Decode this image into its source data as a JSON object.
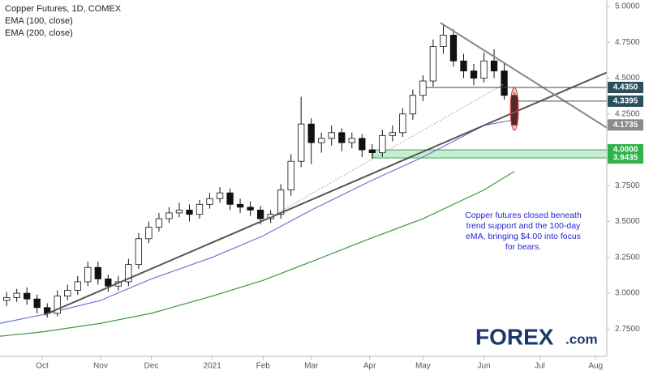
{
  "chart_data": {
    "type": "candlestick",
    "title": "Copper Futures, 1D, COMEX",
    "indicators": [
      "EMA (100, close)",
      "EMA (200, close)"
    ],
    "x": [
      -14,
      -10,
      -6,
      -2,
      2,
      6,
      10,
      14,
      18,
      22,
      26,
      30,
      34,
      38,
      42,
      46,
      50,
      54,
      58,
      62,
      66,
      70,
      74,
      78,
      82,
      86,
      90,
      94,
      98,
      102,
      106,
      110,
      114,
      118,
      122,
      126,
      130,
      134,
      138,
      142,
      146,
      150,
      154,
      158,
      162,
      166,
      170,
      174,
      178,
      182,
      186
    ],
    "open": [
      2.95,
      2.97,
      3.0,
      2.96,
      2.9,
      2.86,
      2.98,
      3.02,
      3.08,
      3.18,
      3.1,
      3.05,
      3.08,
      3.2,
      3.38,
      3.46,
      3.52,
      3.56,
      3.58,
      3.55,
      3.62,
      3.66,
      3.7,
      3.62,
      3.6,
      3.58,
      3.52,
      3.55,
      3.72,
      3.92,
      4.18,
      4.05,
      4.08,
      4.12,
      4.05,
      4.08,
      4.0,
      3.98,
      4.1,
      4.12,
      4.25,
      4.38,
      4.48,
      4.72,
      4.8,
      4.62,
      4.55,
      4.5,
      4.62,
      4.55,
      4.38
    ],
    "high": [
      3.01,
      3.03,
      3.04,
      2.99,
      2.93,
      3.02,
      3.06,
      3.12,
      3.22,
      3.22,
      3.13,
      3.12,
      3.24,
      3.42,
      3.5,
      3.56,
      3.6,
      3.63,
      3.62,
      3.65,
      3.7,
      3.74,
      3.73,
      3.66,
      3.64,
      3.61,
      3.58,
      3.76,
      3.97,
      4.37,
      4.22,
      4.12,
      4.17,
      4.15,
      4.12,
      4.11,
      4.04,
      4.14,
      4.17,
      4.29,
      4.42,
      4.52,
      4.77,
      4.88,
      4.84,
      4.67,
      4.6,
      4.68,
      4.7,
      4.6,
      4.4
    ],
    "low": [
      2.91,
      2.94,
      2.92,
      2.86,
      2.83,
      2.84,
      2.95,
      2.99,
      3.05,
      3.06,
      3.01,
      3.02,
      3.05,
      3.17,
      3.35,
      3.43,
      3.49,
      3.53,
      3.5,
      3.52,
      3.59,
      3.63,
      3.58,
      3.56,
      3.54,
      3.48,
      3.49,
      3.52,
      3.68,
      3.88,
      3.9,
      3.98,
      4.03,
      3.99,
      4.01,
      3.95,
      3.94,
      3.95,
      4.06,
      4.09,
      4.21,
      4.34,
      4.44,
      4.67,
      4.58,
      4.5,
      4.45,
      4.47,
      4.5,
      4.35,
      4.17
    ],
    "close": [
      2.97,
      3.0,
      2.96,
      2.9,
      2.86,
      2.98,
      3.02,
      3.08,
      3.18,
      3.1,
      3.05,
      3.08,
      3.2,
      3.38,
      3.46,
      3.52,
      3.56,
      3.58,
      3.55,
      3.62,
      3.66,
      3.7,
      3.62,
      3.6,
      3.58,
      3.52,
      3.55,
      3.72,
      3.92,
      4.18,
      4.05,
      4.08,
      4.12,
      4.05,
      4.08,
      4.0,
      3.98,
      4.1,
      4.12,
      4.25,
      4.38,
      4.48,
      4.72,
      4.8,
      4.62,
      4.55,
      4.5,
      4.62,
      4.55,
      4.38,
      4.1735
    ],
    "up_color": "#ffffff",
    "down_color": "#111111",
    "series": [
      {
        "name": "EMA (100, close)",
        "color": "#7b6fd0",
        "x": [
          -16.6,
          0,
          23,
          43,
          67,
          87,
          106,
          129,
          150,
          174,
          186
        ],
        "values": [
          2.79,
          2.85,
          2.95,
          3.1,
          3.25,
          3.4,
          3.58,
          3.78,
          3.95,
          4.17,
          4.21
        ]
      },
      {
        "name": "EMA (200, close)",
        "color": "#3f9a3f",
        "x": [
          -16.6,
          0,
          23,
          43,
          67,
          87,
          106,
          129,
          150,
          174,
          186
        ],
        "values": [
          2.7,
          2.73,
          2.79,
          2.86,
          2.98,
          3.09,
          3.22,
          3.38,
          3.52,
          3.72,
          3.85
        ]
      }
    ],
    "trendlines": [
      {
        "color": "#555555",
        "x": [
          1,
          222.4
        ],
        "y": [
          2.85,
          4.54
        ]
      },
      {
        "color": "#888888",
        "x": [
          156.8,
          222.4
        ],
        "y": [
          4.887,
          4.154
        ]
      }
    ],
    "dotted_line": {
      "color": "#aaaaaa",
      "x": [
        88.8,
        182
      ],
      "y": [
        3.52,
        4.46
      ]
    },
    "levels": [
      {
        "value": 4.435,
        "label": "4.4350",
        "color": "#2c4f5c",
        "start": 151
      },
      {
        "value": 4.3395,
        "label": "4.3395",
        "color": "#2c4f5c",
        "start": 186
      },
      {
        "value": 4.1735,
        "label": "4.1735",
        "color": "#8a8a8a"
      }
    ],
    "zone": {
      "low": {
        "value": 3.9435,
        "label": "3.9435"
      },
      "high": {
        "value": 4.0,
        "label": "4.0000"
      },
      "color": "#2db34a",
      "start": 130.3
    },
    "annotation": [
      "Copper futures closed beneath",
      "trend support and the 100-day",
      "eMA, bringing $4.00 into focus",
      "for bears."
    ],
    "logo": {
      "brand": "FOREX",
      "suffix": ".com"
    },
    "grid": false,
    "xlim": [
      -16.6,
      222.4
    ],
    "xticks": [
      {
        "value": 0,
        "label": "Oct"
      },
      {
        "value": 23,
        "label": "Nov"
      },
      {
        "value": 43,
        "label": "Dec"
      },
      {
        "value": 67,
        "label": "2021"
      },
      {
        "value": 87,
        "label": "Feb"
      },
      {
        "value": 106,
        "label": "Mar"
      },
      {
        "value": 129,
        "label": "Apr"
      },
      {
        "value": 150,
        "label": "May"
      },
      {
        "value": 174,
        "label": "Jun"
      },
      {
        "value": 196,
        "label": "Jul"
      },
      {
        "value": 218,
        "label": "Aug"
      }
    ],
    "ylim": [
      2.56,
      5.045
    ],
    "yticks": [
      {
        "value": 2.75,
        "label": "2.7500"
      },
      {
        "value": 3.0,
        "label": "3.0000"
      },
      {
        "value": 3.25,
        "label": "3.2500"
      },
      {
        "value": 3.5,
        "label": "3.5000"
      },
      {
        "value": 3.75,
        "label": "3.7500"
      },
      {
        "value": 4.0,
        "label": "4.0000"
      },
      {
        "value": 4.25,
        "label": "4.2500"
      },
      {
        "value": 4.5,
        "label": "4.5000"
      },
      {
        "value": 4.75,
        "label": "4.7500"
      },
      {
        "value": 5.0,
        "label": "5.0000"
      }
    ]
  }
}
